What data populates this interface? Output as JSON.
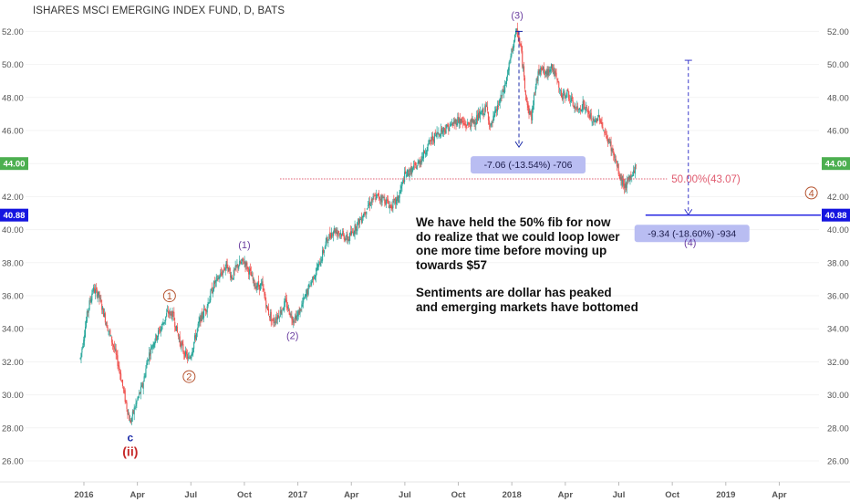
{
  "title": "ISHARES MSCI EMERGING INDEX FUND, D, BATS",
  "chart_data": {
    "type": "candlestick",
    "title": "ISHARES MSCI EMERGING INDEX FUND, D, BATS",
    "xlabel": "",
    "ylabel": "",
    "ylim": [
      25,
      53
    ],
    "y_ticks": [
      "52.00",
      "50.00",
      "48.00",
      "46.00",
      "44.00",
      "42.00",
      "40.00",
      "38.00",
      "36.00",
      "34.00",
      "32.00",
      "30.00",
      "28.00",
      "26.00"
    ],
    "x_ticks": [
      "2016",
      "Apr",
      "Jul",
      "Oct",
      "2017",
      "Apr",
      "Jul",
      "Oct",
      "2018",
      "Apr",
      "Jul",
      "Oct",
      "2019",
      "Apr"
    ],
    "x_tick_index": [
      0,
      3,
      6,
      9,
      12,
      15,
      18,
      21,
      24,
      27,
      30,
      33,
      36,
      39
    ],
    "x_range_months": [
      -0.2,
      41.5
    ],
    "price_path": [
      [
        -0.2,
        32.2
      ],
      [
        0.2,
        35.0
      ],
      [
        0.5,
        36.4
      ],
      [
        0.8,
        36.1
      ],
      [
        1.3,
        34.2
      ],
      [
        1.7,
        32.8
      ],
      [
        2.0,
        31.5
      ],
      [
        2.3,
        29.8
      ],
      [
        2.6,
        28.3
      ],
      [
        2.9,
        29.4
      ],
      [
        3.3,
        30.6
      ],
      [
        3.6,
        32.3
      ],
      [
        3.9,
        33.2
      ],
      [
        4.3,
        34.0
      ],
      [
        4.7,
        35.0
      ],
      [
        5.0,
        34.8
      ],
      [
        5.3,
        33.5
      ],
      [
        5.6,
        32.6
      ],
      [
        5.9,
        32.1
      ],
      [
        6.2,
        33.3
      ],
      [
        6.5,
        34.5
      ],
      [
        6.9,
        35.4
      ],
      [
        7.3,
        36.7
      ],
      [
        7.7,
        37.3
      ],
      [
        8.0,
        37.9
      ],
      [
        8.3,
        37.1
      ],
      [
        8.6,
        37.8
      ],
      [
        9.0,
        38.1
      ],
      [
        9.3,
        37.4
      ],
      [
        9.6,
        36.6
      ],
      [
        10.0,
        36.6
      ],
      [
        10.3,
        35.1
      ],
      [
        10.6,
        34.4
      ],
      [
        11.0,
        35.0
      ],
      [
        11.3,
        35.6
      ],
      [
        11.7,
        34.6
      ],
      [
        12.0,
        34.8
      ],
      [
        12.4,
        35.9
      ],
      [
        12.8,
        37.0
      ],
      [
        13.2,
        37.9
      ],
      [
        13.6,
        39.3
      ],
      [
        14.0,
        40.0
      ],
      [
        14.4,
        39.8
      ],
      [
        14.8,
        39.4
      ],
      [
        15.2,
        40.1
      ],
      [
        15.6,
        40.8
      ],
      [
        16.0,
        41.6
      ],
      [
        16.4,
        42.0
      ],
      [
        16.8,
        41.9
      ],
      [
        17.2,
        41.4
      ],
      [
        17.6,
        41.8
      ],
      [
        18.0,
        43.3
      ],
      [
        18.4,
        43.6
      ],
      [
        18.7,
        43.9
      ],
      [
        19.0,
        44.5
      ],
      [
        19.4,
        45.3
      ],
      [
        19.8,
        45.8
      ],
      [
        20.2,
        46.1
      ],
      [
        20.6,
        46.3
      ],
      [
        21.0,
        46.7
      ],
      [
        21.4,
        46.3
      ],
      [
        21.8,
        46.5
      ],
      [
        22.2,
        46.9
      ],
      [
        22.6,
        47.4
      ],
      [
        22.8,
        46.1
      ],
      [
        23.0,
        46.8
      ],
      [
        23.3,
        47.7
      ],
      [
        23.6,
        48.6
      ],
      [
        23.9,
        50.2
      ],
      [
        24.1,
        51.4
      ],
      [
        24.3,
        52.0
      ],
      [
        24.5,
        51.0
      ],
      [
        24.7,
        49.0
      ],
      [
        24.9,
        47.3
      ],
      [
        25.1,
        46.8
      ],
      [
        25.3,
        48.5
      ],
      [
        25.6,
        50.0
      ],
      [
        25.9,
        49.3
      ],
      [
        26.2,
        50.0
      ],
      [
        26.5,
        49.1
      ],
      [
        26.8,
        48.0
      ],
      [
        27.1,
        48.3
      ],
      [
        27.4,
        47.6
      ],
      [
        27.7,
        47.2
      ],
      [
        28.0,
        47.6
      ],
      [
        28.3,
        47.0
      ],
      [
        28.6,
        46.4
      ],
      [
        28.9,
        46.9
      ],
      [
        29.2,
        45.8
      ],
      [
        29.5,
        45.2
      ],
      [
        29.8,
        44.2
      ],
      [
        30.1,
        43.0
      ],
      [
        30.4,
        42.6
      ],
      [
        30.7,
        43.3
      ],
      [
        31.0,
        43.9
      ]
    ],
    "wave_labels": [
      {
        "text": "c",
        "month": 2.6,
        "price": 28.3,
        "color": "#1a2aa8",
        "style": "plain"
      },
      {
        "text": "(ii)",
        "month": 2.6,
        "price": 28.3,
        "color": "#c62828",
        "style": "plain"
      },
      {
        "text": "1",
        "month": 4.8,
        "price": 35.0,
        "color": "#b5532f",
        "style": "circle"
      },
      {
        "text": "2",
        "month": 5.9,
        "price": 32.1,
        "color": "#b5532f",
        "style": "circle"
      },
      {
        "text": "(1)",
        "month": 9.0,
        "price": 38.1,
        "color": "#6b3fa0",
        "style": "plain"
      },
      {
        "text": "(2)",
        "month": 11.7,
        "price": 34.6,
        "color": "#6b3fa0",
        "style": "plain"
      },
      {
        "text": "(3)",
        "month": 24.3,
        "price": 52.0,
        "color": "#6b3fa0",
        "style": "plain"
      },
      {
        "text": "(4)",
        "month": 34.0,
        "price": 38.8,
        "color": "#6b3fa0",
        "style": "plain"
      },
      {
        "text": "4",
        "month": 40.8,
        "price": 42.0,
        "color": "#b5532f",
        "style": "circle"
      }
    ],
    "fib_level": {
      "label": "50.00%(43.07)",
      "price": 43.07,
      "from_month": 11.0,
      "to_month": 32.7,
      "color": "#e05b6f"
    },
    "horizontal_line": {
      "price": 40.88,
      "label": "40.88",
      "from_month": 31.5,
      "color": "#1515e0"
    },
    "current_price": {
      "price": 44.0,
      "label": "44.00",
      "color": "#4caf50"
    },
    "measures": [
      {
        "label": "-7.06 (-13.54%) -706",
        "month": 24.4,
        "from_price": 52.0,
        "to_price": 45.0,
        "color": "#1a2aa8"
      },
      {
        "label": "-9.34 (-18.60%) -934",
        "month": 33.9,
        "from_price": 50.25,
        "to_price": 40.9,
        "color": "#3a3acb"
      }
    ]
  },
  "note": {
    "para1": [
      "We have held the 50% fib for now",
      "do realize that we could loop lower",
      "one more time before moving up",
      "towards $57"
    ],
    "para2": [
      "Sentiments are dollar has peaked",
      "and emerging markets have bottomed"
    ]
  }
}
